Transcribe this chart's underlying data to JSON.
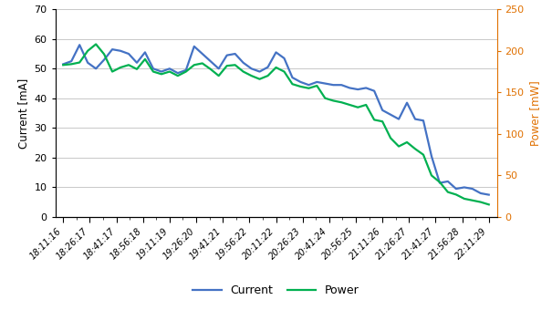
{
  "x_labels": [
    "18:11:16",
    "18:26:17",
    "18:41:17",
    "18:56:18",
    "19:11:19",
    "19:26:20",
    "19:41:21",
    "19:56:22",
    "20:11:22",
    "20:26:23",
    "20:41:24",
    "20:56:25",
    "21:11:26",
    "21:26:27",
    "21:41:27",
    "21:56:28",
    "22:11:29"
  ],
  "current_values": [
    51.5,
    52.5,
    58.0,
    52.0,
    50.0,
    53.0,
    56.5,
    56.0,
    55.0,
    52.0,
    55.5,
    50.0,
    49.0,
    50.0,
    48.5,
    49.5,
    57.5,
    55.0,
    52.5,
    50.0,
    54.5,
    55.0,
    52.0,
    50.0,
    49.0,
    50.5,
    55.5,
    53.5,
    47.0,
    45.5,
    44.5,
    45.5,
    45.0,
    44.5,
    44.5,
    43.5,
    43.0,
    43.5,
    42.5,
    36.0,
    34.5,
    33.0,
    38.5,
    33.0,
    32.5,
    20.5,
    11.5,
    12.0,
    9.5,
    10.0,
    9.5,
    8.0,
    7.5
  ],
  "power_values": [
    183,
    184,
    186,
    200,
    208,
    196,
    175,
    180,
    183,
    178,
    190,
    175,
    172,
    175,
    170,
    175,
    183,
    185,
    178,
    170,
    182,
    183,
    175,
    170,
    166,
    170,
    180,
    175,
    160,
    157,
    155,
    158,
    143,
    140,
    138,
    135,
    132,
    135,
    117,
    115,
    95,
    85,
    90,
    82,
    75,
    50,
    42,
    30,
    27,
    22,
    20,
    18,
    15
  ],
  "current_color": "#4472C4",
  "power_color": "#00B050",
  "ylabel_left": "Current [mA]",
  "ylabel_right": "Power [mW]",
  "ylim_left": [
    0,
    70
  ],
  "ylim_right": [
    0,
    250
  ],
  "yticks_left": [
    0,
    10,
    20,
    30,
    40,
    50,
    60,
    70
  ],
  "yticks_right": [
    0,
    50,
    100,
    150,
    200,
    250
  ],
  "legend_labels": [
    "Current",
    "Power"
  ],
  "background_color": "#FFFFFF",
  "grid_color": "#BFBFBF",
  "line_width": 1.6
}
